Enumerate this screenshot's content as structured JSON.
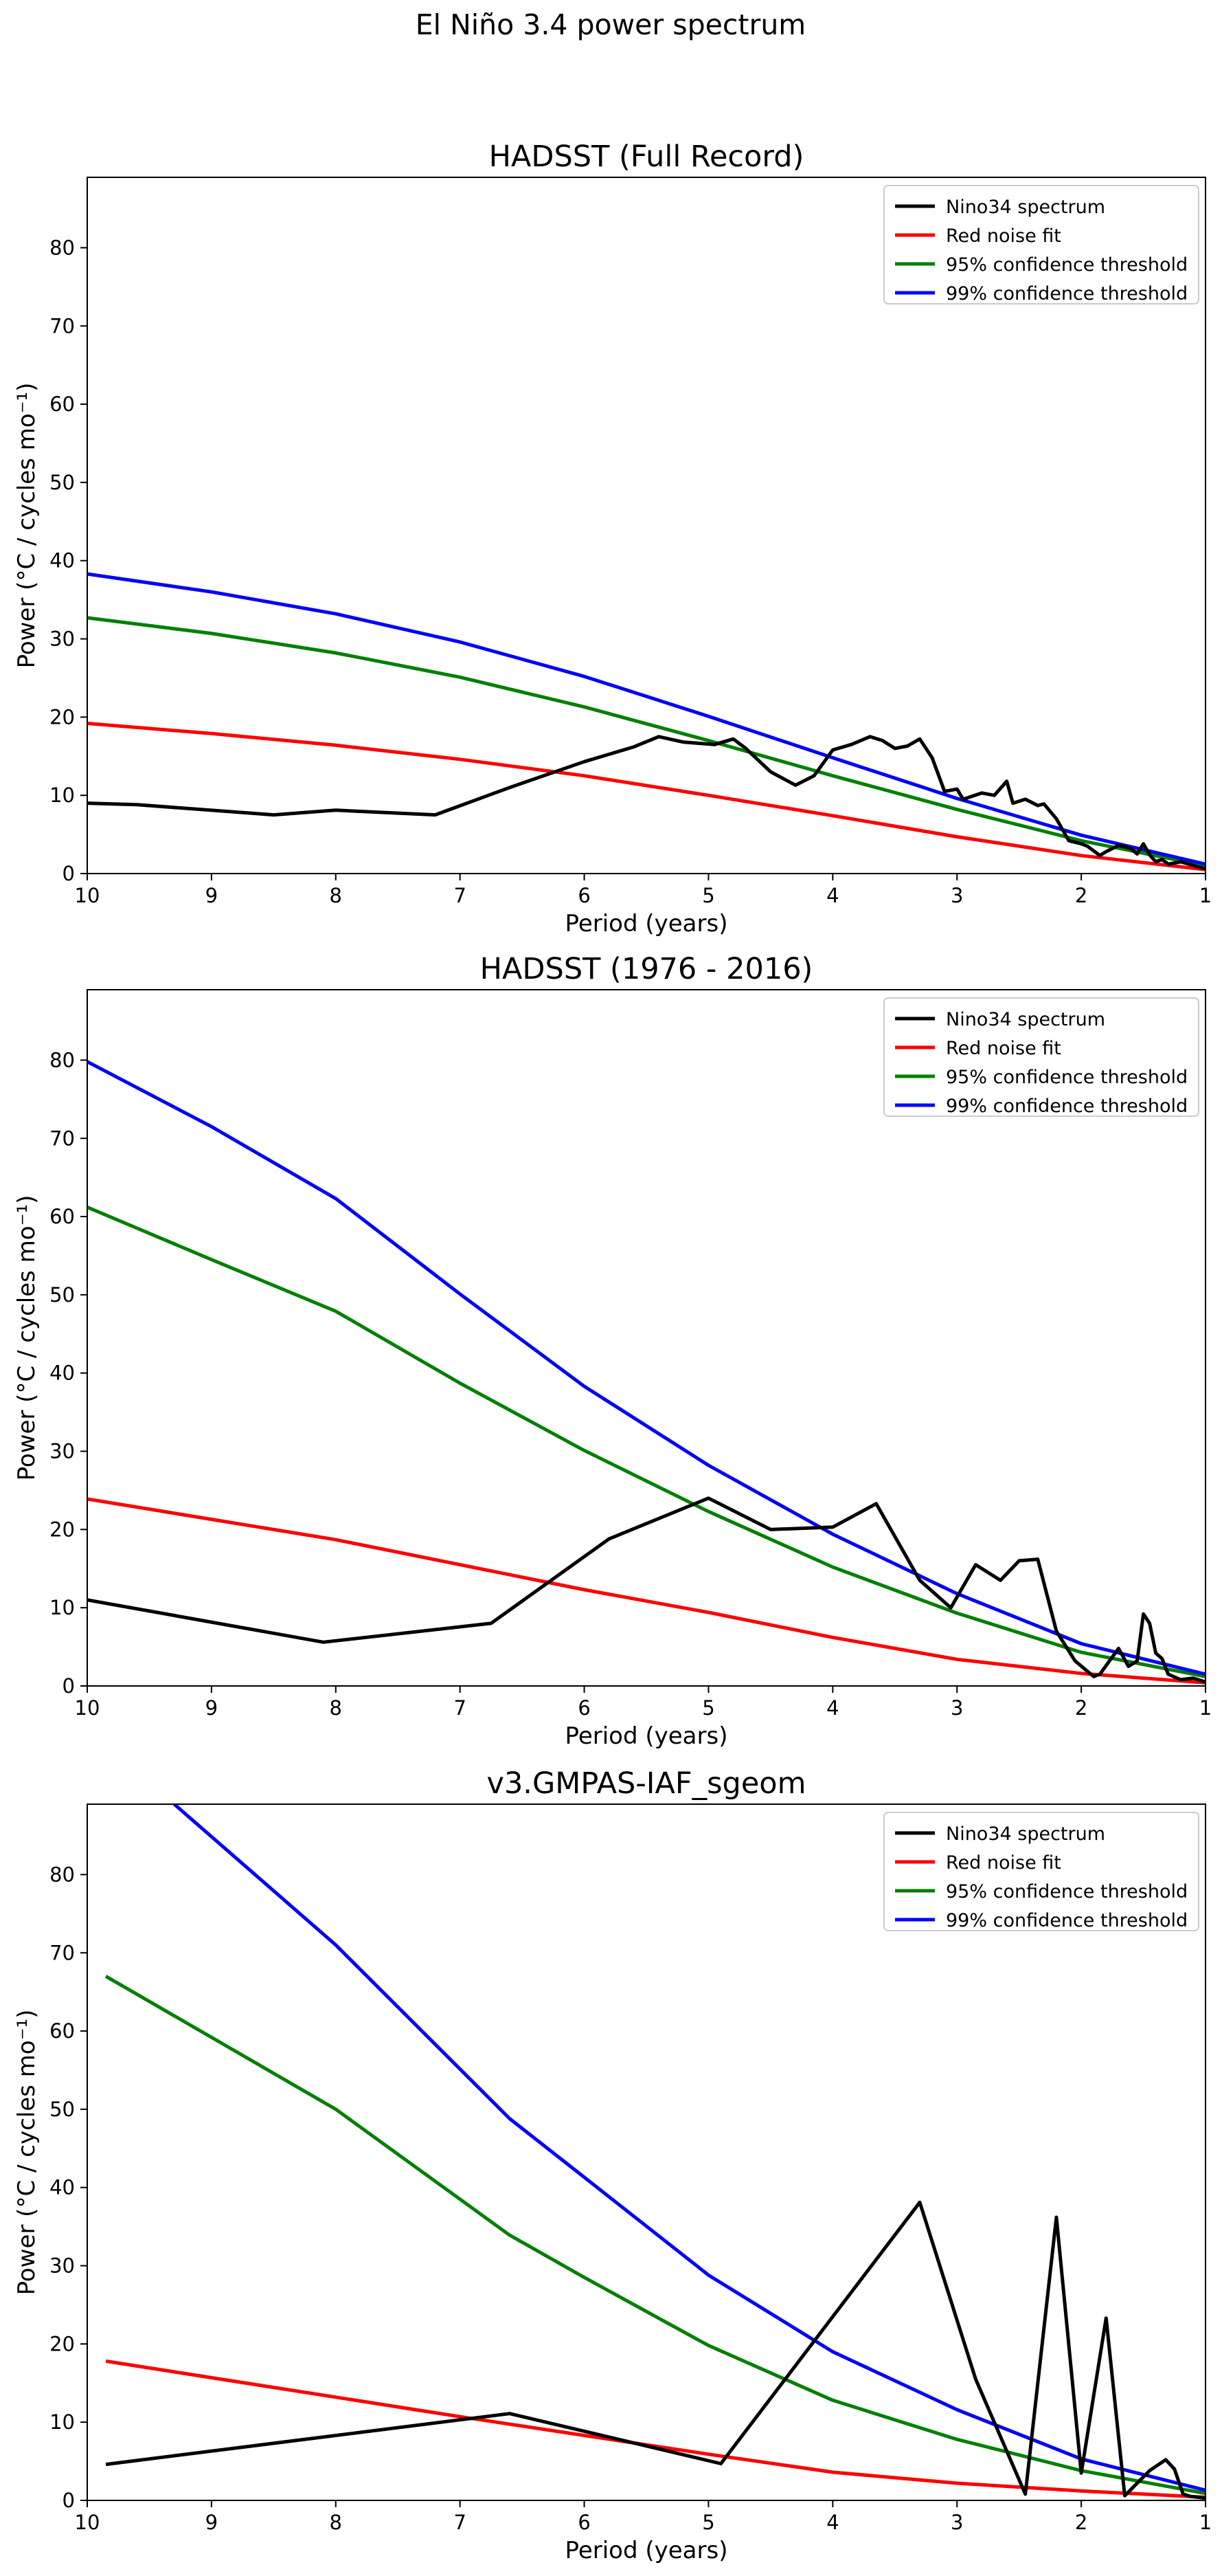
{
  "figure": {
    "suptitle": "El Niño 3.4 power spectrum"
  },
  "colors": {
    "spectrum": "#000000",
    "red_noise": "#ff0000",
    "c95": "#008000",
    "c99": "#0000ff"
  },
  "chart_data": [
    {
      "type": "line",
      "title": "HADSST (Full Record)",
      "xlabel": "Period (years)",
      "ylabel": "Power (°C / cycles mo⁻¹)",
      "xlim": [
        10,
        1
      ],
      "ylim": [
        0,
        89
      ],
      "xticks": [
        10,
        9,
        8,
        7,
        6,
        5,
        4,
        3,
        2,
        1
      ],
      "yticks": [
        0,
        10,
        20,
        30,
        40,
        50,
        60,
        70,
        80
      ],
      "legend": "top-right",
      "series": [
        {
          "name": "Nino34 spectrum",
          "color": "#000000",
          "x": [
            10,
            9.6,
            8.5,
            8.0,
            7.2,
            6.6,
            6.0,
            5.6,
            5.4,
            5.2,
            4.95,
            4.8,
            4.7,
            4.5,
            4.3,
            4.15,
            4.0,
            3.85,
            3.7,
            3.6,
            3.5,
            3.4,
            3.3,
            3.2,
            3.1,
            3.0,
            2.95,
            2.8,
            2.7,
            2.6,
            2.55,
            2.45,
            2.35,
            2.3,
            2.2,
            2.1,
            2.0,
            1.95,
            1.85,
            1.8,
            1.7,
            1.6,
            1.55,
            1.5,
            1.45,
            1.4,
            1.35,
            1.3,
            1.2,
            1.0
          ],
          "y": [
            9.0,
            8.8,
            7.5,
            8.1,
            7.5,
            11.0,
            14.3,
            16.2,
            17.5,
            16.8,
            16.5,
            17.2,
            16.0,
            13.0,
            11.3,
            12.5,
            15.8,
            16.5,
            17.5,
            17.0,
            16.0,
            16.3,
            17.2,
            14.8,
            10.5,
            10.8,
            9.5,
            10.3,
            10.0,
            11.8,
            9.0,
            9.5,
            8.7,
            8.9,
            7.0,
            4.2,
            3.8,
            3.5,
            2.3,
            2.8,
            3.6,
            3.2,
            2.5,
            3.8,
            2.4,
            1.5,
            1.8,
            1.2,
            1.5,
            0.6
          ]
        },
        {
          "name": "Red noise fit",
          "color": "#ff0000",
          "x": [
            10,
            9,
            8,
            7,
            6,
            5,
            4,
            3,
            2,
            1
          ],
          "y": [
            19.2,
            17.9,
            16.4,
            14.6,
            12.5,
            10.0,
            7.4,
            4.7,
            2.3,
            0.5
          ]
        },
        {
          "name": "95% confidence threshold",
          "color": "#008000",
          "x": [
            10,
            9,
            8,
            7,
            6,
            5,
            4,
            3,
            2,
            1
          ],
          "y": [
            32.7,
            30.7,
            28.2,
            25.1,
            21.3,
            17.0,
            12.5,
            8.2,
            4.2,
            1.0
          ]
        },
        {
          "name": "99% confidence threshold",
          "color": "#0000ff",
          "x": [
            10,
            9,
            8,
            7,
            6,
            5,
            4,
            3,
            2,
            1
          ],
          "y": [
            38.3,
            36.0,
            33.2,
            29.6,
            25.2,
            20.1,
            14.8,
            9.6,
            4.9,
            1.2
          ]
        }
      ]
    },
    {
      "type": "line",
      "title": "HADSST (1976 - 2016)",
      "xlabel": "Period (years)",
      "ylabel": "Power (°C / cycles mo⁻¹)",
      "xlim": [
        10,
        1
      ],
      "ylim": [
        0,
        89
      ],
      "xticks": [
        10,
        9,
        8,
        7,
        6,
        5,
        4,
        3,
        2,
        1
      ],
      "yticks": [
        0,
        10,
        20,
        30,
        40,
        50,
        60,
        70,
        80
      ],
      "legend": "top-right",
      "series": [
        {
          "name": "Nino34 spectrum",
          "color": "#000000",
          "x": [
            10,
            8.1,
            6.75,
            5.8,
            5.0,
            4.5,
            4.0,
            3.65,
            3.3,
            3.05,
            2.85,
            2.65,
            2.5,
            2.35,
            2.2,
            2.05,
            1.9,
            1.85,
            1.7,
            1.62,
            1.55,
            1.5,
            1.45,
            1.4,
            1.35,
            1.3,
            1.2,
            1.1,
            1.0
          ],
          "y": [
            11.0,
            5.6,
            8.0,
            18.8,
            24.0,
            20.0,
            20.3,
            23.3,
            13.5,
            10.0,
            15.5,
            13.5,
            16.0,
            16.2,
            7.0,
            3.2,
            1.2,
            1.5,
            4.8,
            2.5,
            3.2,
            9.2,
            8.0,
            4.2,
            3.5,
            1.5,
            0.8,
            1.0,
            0.5
          ]
        },
        {
          "name": "Red noise fit",
          "color": "#ff0000",
          "x": [
            10,
            9,
            8,
            7,
            6,
            5,
            4,
            3,
            2,
            1
          ],
          "y": [
            23.9,
            21.3,
            18.7,
            15.5,
            12.3,
            9.4,
            6.2,
            3.4,
            1.6,
            0.4
          ]
        },
        {
          "name": "95% confidence threshold",
          "color": "#008000",
          "x": [
            10,
            9,
            8,
            7,
            6,
            5,
            4,
            3,
            2,
            1
          ],
          "y": [
            61.2,
            54.5,
            47.9,
            38.7,
            30.1,
            22.3,
            15.2,
            9.3,
            4.3,
            1.2
          ]
        },
        {
          "name": "99% confidence threshold",
          "color": "#0000ff",
          "x": [
            10,
            9,
            8,
            7,
            6,
            5,
            4,
            3,
            2,
            1
          ],
          "y": [
            79.8,
            71.5,
            62.3,
            50.1,
            38.3,
            28.2,
            19.4,
            11.8,
            5.4,
            1.5
          ]
        }
      ]
    },
    {
      "type": "line",
      "title": "v3.GMPAS-IAF_sgeom",
      "xlabel": "Period (years)",
      "ylabel": "Power (°C / cycles mo⁻¹)",
      "xlim": [
        10,
        1
      ],
      "ylim": [
        0,
        89
      ],
      "xticks": [
        10,
        9,
        8,
        7,
        6,
        5,
        4,
        3,
        2,
        1
      ],
      "yticks": [
        0,
        10,
        20,
        30,
        40,
        50,
        60,
        70,
        80
      ],
      "legend": "top-right",
      "series": [
        {
          "name": "Nino34 spectrum",
          "color": "#000000",
          "x": [
            9.85,
            6.6,
            4.9,
            3.3,
            2.85,
            2.45,
            2.2,
            2.0,
            1.8,
            1.65,
            1.45,
            1.32,
            1.25,
            1.18,
            1.12,
            1.0
          ],
          "y": [
            4.6,
            11.1,
            4.7,
            38.1,
            15.5,
            0.8,
            36.2,
            3.5,
            23.3,
            0.6,
            3.8,
            5.2,
            4.0,
            0.8,
            0.5,
            0.3
          ]
        },
        {
          "name": "Red noise fit",
          "color": "#ff0000",
          "x": [
            9.85,
            8,
            7,
            6,
            5,
            4,
            3,
            2,
            1
          ],
          "y": [
            17.8,
            13.2,
            10.7,
            8.3,
            5.9,
            3.6,
            2.2,
            1.2,
            0.4
          ]
        },
        {
          "name": "95% confidence threshold",
          "color": "#008000",
          "x": [
            9.85,
            8,
            6.6,
            6,
            5,
            4,
            3,
            2,
            1
          ],
          "y": [
            67.0,
            50.0,
            33.9,
            28.5,
            19.8,
            12.8,
            7.8,
            3.8,
            0.9
          ]
        },
        {
          "name": "99% confidence threshold",
          "color": "#0000ff",
          "x": [
            9.3,
            8,
            6.6,
            6,
            5,
            4,
            3,
            2,
            1
          ],
          "y": [
            89.0,
            71.0,
            48.8,
            41.3,
            28.8,
            19.0,
            11.6,
            5.3,
            1.3
          ]
        }
      ]
    }
  ]
}
